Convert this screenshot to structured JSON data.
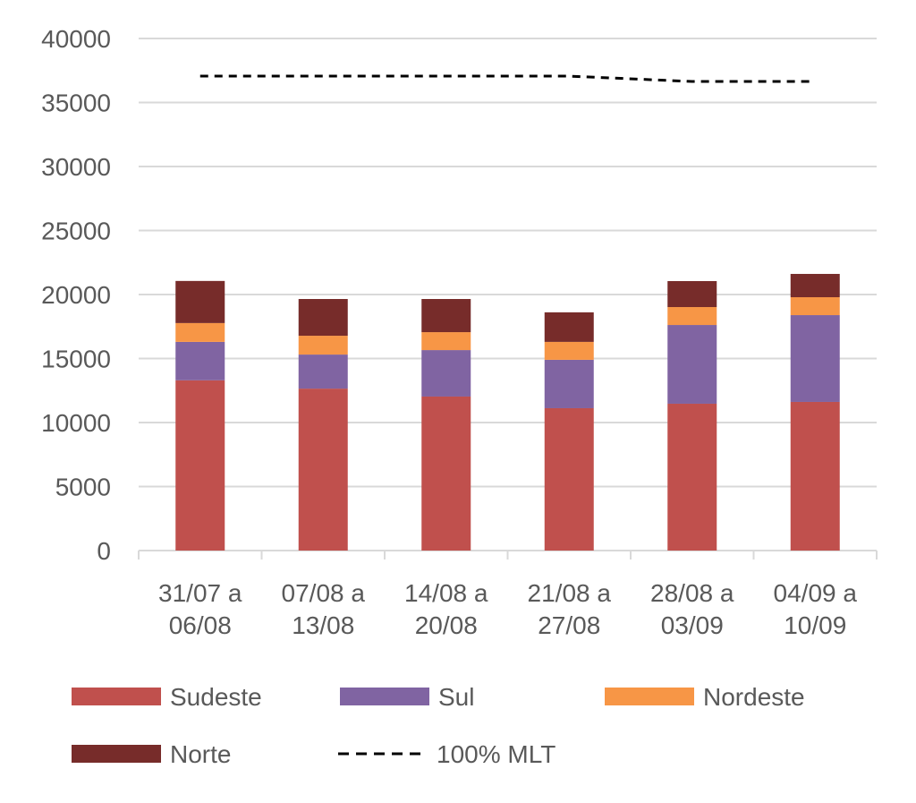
{
  "chart_data": {
    "type": "bar",
    "stacked": true,
    "categories": [
      [
        "31/07 a",
        "06/08"
      ],
      [
        "07/08 a",
        "13/08"
      ],
      [
        "14/08 a",
        "20/08"
      ],
      [
        "21/08 a",
        "27/08"
      ],
      [
        "28/08 a",
        "03/09"
      ],
      [
        "04/09 a",
        "10/09"
      ]
    ],
    "series": [
      {
        "name": "Sudeste",
        "color": "#C0504D",
        "values": [
          13300,
          12650,
          12030,
          11120,
          11470,
          11610
        ]
      },
      {
        "name": "Sul",
        "color": "#8064A2",
        "values": [
          3000,
          2660,
          3630,
          3780,
          6150,
          6780
        ]
      },
      {
        "name": "Nordeste",
        "color": "#F79646",
        "values": [
          1470,
          1470,
          1400,
          1400,
          1400,
          1400
        ]
      },
      {
        "name": "Norte",
        "color": "#772C2A",
        "values": [
          3290,
          2870,
          2590,
          2310,
          2030,
          1820
        ]
      }
    ],
    "line_series": {
      "name": "100% MLT",
      "color": "#000000",
      "style": "dashed",
      "values": [
        37060,
        37060,
        37060,
        37060,
        36640,
        36640
      ]
    },
    "ylim": [
      0,
      40000
    ],
    "yticks": [
      0,
      5000,
      10000,
      15000,
      20000,
      25000,
      30000,
      35000,
      40000
    ],
    "grid": true,
    "legend": "bottom"
  }
}
